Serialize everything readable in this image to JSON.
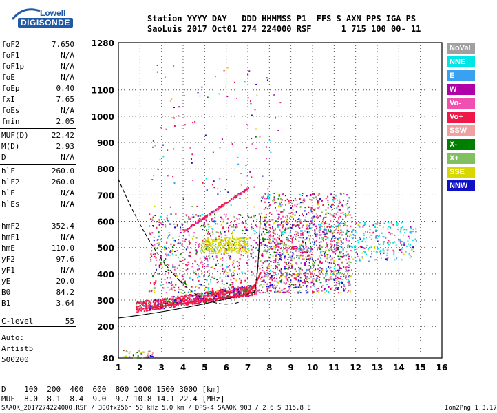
{
  "logo": {
    "line1": "Lowell",
    "line2": "DIGISONDE"
  },
  "header": {
    "row1": "Station YYYY DAY   DDD HHMMSS P1  FFS S AXN PPS IGA PS",
    "row2": "SaoLuis 2017 Oct01 274 224000 RSF      1 715 100 00- 11"
  },
  "params": [
    {
      "name": "foF2",
      "value": "7.650"
    },
    {
      "name": "foF1",
      "value": "N/A"
    },
    {
      "name": "foF1p",
      "value": "N/A"
    },
    {
      "name": "foE",
      "value": "N/A"
    },
    {
      "name": "foEp",
      "value": "0.40"
    },
    {
      "name": "fxI",
      "value": "7.65"
    },
    {
      "name": "foEs",
      "value": "N/A"
    },
    {
      "name": "fmin",
      "value": "2.05"
    },
    {
      "name": "MUF(D)",
      "value": "22.42"
    },
    {
      "name": "M(D)",
      "value": "2.93"
    },
    {
      "name": "D",
      "value": "N/A"
    },
    {
      "name": "h`F",
      "value": "260.0"
    },
    {
      "name": "h`F2",
      "value": "260.0"
    },
    {
      "name": "h`E",
      "value": "N/A"
    },
    {
      "name": "h`Es",
      "value": "N/A"
    },
    {
      "name": "hmF2",
      "value": "352.4"
    },
    {
      "name": "hmF1",
      "value": "N/A"
    },
    {
      "name": "hmE",
      "value": "110.0"
    },
    {
      "name": "yF2",
      "value": "97.6"
    },
    {
      "name": "yF1",
      "value": "N/A"
    },
    {
      "name": "yE",
      "value": "20.0"
    },
    {
      "name": "B0",
      "value": "84.2"
    },
    {
      "name": "B1",
      "value": "3.64"
    },
    {
      "name": "C-level",
      "value": "55"
    }
  ],
  "auto": {
    "line1": "Auto:",
    "line2": "Artist5",
    "line3": "500200"
  },
  "legend": [
    {
      "label": "NoVal",
      "color": "#a0a0a0"
    },
    {
      "label": "NNE",
      "color": "#00e6e6"
    },
    {
      "label": "E",
      "color": "#3aa0f0"
    },
    {
      "label": "W",
      "color": "#b000a8"
    },
    {
      "label": "Vo-",
      "color": "#f050b0"
    },
    {
      "label": "Vo+",
      "color": "#f01848"
    },
    {
      "label": "SSW",
      "color": "#f0a0a0"
    },
    {
      "label": "X-",
      "color": "#008000"
    },
    {
      "label": "X+",
      "color": "#80c060"
    },
    {
      "label": "SSE",
      "color": "#d8d800"
    },
    {
      "label": "NNW",
      "color": "#1010c8"
    }
  ],
  "footer": {
    "d_row": "D    100  200  400  600  800 1000 1500 3000 [km]",
    "muf_row": "MUF  8.0  8.1  8.4  9.0  9.7 10.8 14.1 22.4 [MHz]",
    "file_row": "SAA0K_2017274224000.RSF / 300fx256h 50 kHz 5.0 km / DPS-4 SAA0K 903 / 2.6 S 315.8 E",
    "version": "Ion2Png 1.3.17"
  },
  "chart_data": {
    "type": "scatter",
    "xlim": [
      1,
      16
    ],
    "ylim": [
      80,
      1280
    ],
    "x_ticks": [
      "1",
      "2",
      "3",
      "4",
      "5",
      "6",
      "7",
      "8",
      "9",
      "10",
      "11",
      "12",
      "13",
      "14",
      "15",
      "16"
    ],
    "y_ticks": [
      "80",
      "200",
      "300",
      "400",
      "500",
      "600",
      "700",
      "800",
      "900",
      "1000",
      "1100",
      "1280"
    ],
    "grid": true,
    "legend_placement": "right"
  }
}
